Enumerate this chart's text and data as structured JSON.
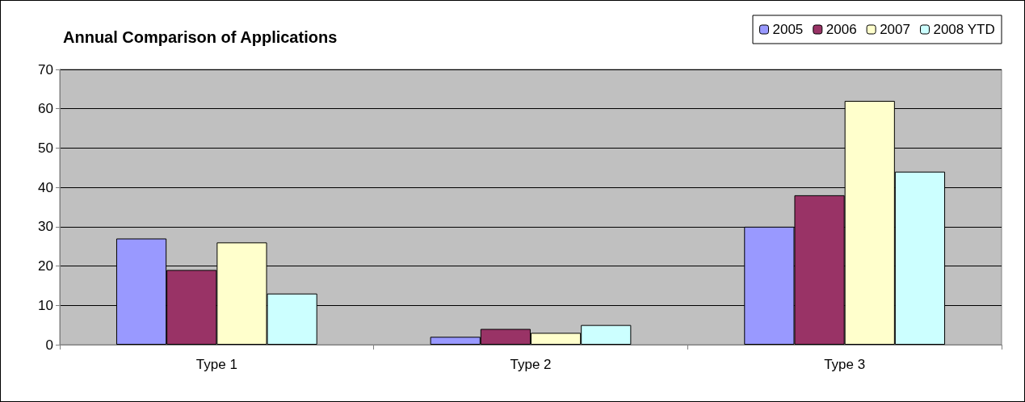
{
  "chart_data": {
    "type": "bar",
    "title": "Annual Comparison of Applications",
    "categories": [
      "Type 1",
      "Type 2",
      "Type 3"
    ],
    "series": [
      {
        "name": "2005",
        "color": "#9999ff",
        "values": [
          27,
          2,
          30
        ]
      },
      {
        "name": "2006",
        "color": "#993366",
        "values": [
          19,
          4,
          38
        ]
      },
      {
        "name": "2007",
        "color": "#ffffcc",
        "values": [
          26,
          3,
          62
        ]
      },
      {
        "name": "2008 YTD",
        "color": "#ccffff",
        "values": [
          13,
          5,
          44
        ]
      }
    ],
    "ylim": [
      0,
      70
    ],
    "yticks": [
      0,
      10,
      20,
      30,
      40,
      50,
      60,
      70
    ],
    "grid": "y",
    "legend": "top right"
  }
}
